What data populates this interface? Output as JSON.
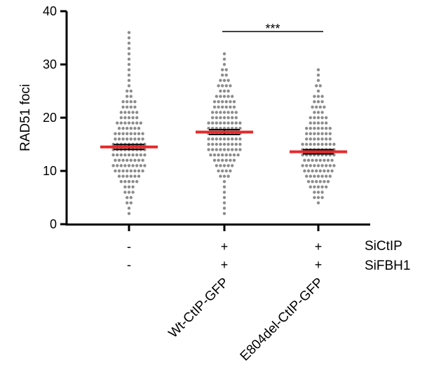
{
  "chart_data": {
    "type": "scatter",
    "subtype": "dot-plot-with-mean-and-sem",
    "ylabel": "RAD51 foci",
    "ylim": [
      0,
      40
    ],
    "yticks": [
      "0",
      "10",
      "20",
      "30",
      "40"
    ],
    "condition_labels": [
      "SiCtIP",
      "SiFBH1"
    ],
    "groups": [
      {
        "signs": [
          "-",
          "-"
        ],
        "label": "",
        "mean": 14.5,
        "sem": 0.45,
        "ymin": 2,
        "ymax": 36
      },
      {
        "signs": [
          "+",
          "+"
        ],
        "label": "Wt-CtIP-GFP",
        "mean": 17.3,
        "sem": 0.45,
        "ymin": 2,
        "ymax": 32
      },
      {
        "signs": [
          "+",
          "+"
        ],
        "label": "E804del-CtIP-GFP",
        "mean": 13.6,
        "sem": 0.4,
        "ymin": 4,
        "ymax": 29
      }
    ],
    "significance": {
      "from_group": 1,
      "to_group": 2,
      "label": "***"
    },
    "colors": {
      "points": "#8c8c8c",
      "mean": "#e8282b",
      "sem": "#000000",
      "axis": "#000000"
    }
  }
}
